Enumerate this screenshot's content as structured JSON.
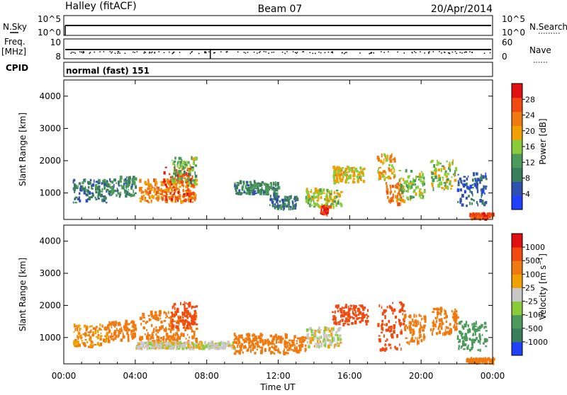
{
  "header": {
    "radar": "Halley (fitACF)",
    "beam": "Beam 07",
    "date": "20/Apr/2014"
  },
  "param_panel": {
    "left_top_label": "N.Sky",
    "left_mid_label": "Freq.",
    "left_mid_unit": "[MHz]",
    "left_bottom_label": "CPID",
    "right_top_label": "N.Search",
    "right_mid_label": "Nave",
    "nsky_ticks": [
      "10^5",
      "10^0"
    ],
    "nsearch_ticks": [
      "10^5",
      "10^0"
    ],
    "freq_ticks": [
      "10",
      "8"
    ],
    "nave_ticks": [
      "60",
      "0"
    ],
    "cpid_text": "normal (fast) 151"
  },
  "colors": {
    "power_scale": [
      "#2040ff",
      "#3050b0",
      "#3a7d5a",
      "#4c9a5a",
      "#8acb3a",
      "#f0a000",
      "#f07a10",
      "#f04a10",
      "#e01010"
    ],
    "velocity_scale": [
      "#e01010",
      "#f04a10",
      "#f07a10",
      "#f0a000",
      "#c8c8c8",
      "#8acb3a",
      "#4c9a5a",
      "#3a7d5a",
      "#2040ff"
    ]
  },
  "chart_data": [
    {
      "type": "heatmap",
      "name": "Power",
      "ylabel": "Slant Range [km]",
      "xlabel": "",
      "x_range_hours": [
        0,
        24
      ],
      "ylim": [
        180,
        4500
      ],
      "yticks": [
        "4000",
        "3000",
        "2000",
        "1000"
      ],
      "colorbar_label": "Power [dB]",
      "colorbar_ticks": [
        "28",
        "24",
        "20",
        "16",
        "12",
        "8",
        "4"
      ],
      "colorbar_range": [
        0,
        32
      ],
      "regions": [
        {
          "t": [
            0.5,
            2.5
          ],
          "r": [
            700,
            1400
          ],
          "value": 8
        },
        {
          "t": [
            2.5,
            4.0
          ],
          "r": [
            900,
            1500
          ],
          "value": 10
        },
        {
          "t": [
            4.2,
            7.4
          ],
          "r": [
            700,
            1400
          ],
          "value": 22
        },
        {
          "t": [
            5.5,
            7.2
          ],
          "r": [
            750,
            1800
          ],
          "value": 27
        },
        {
          "t": [
            6.0,
            7.4
          ],
          "r": [
            1300,
            2100
          ],
          "value": 14
        },
        {
          "t": [
            9.5,
            12.0
          ],
          "r": [
            950,
            1350
          ],
          "value": 10
        },
        {
          "t": [
            11.5,
            13.0
          ],
          "r": [
            500,
            900
          ],
          "value": 8
        },
        {
          "t": [
            13.5,
            15.5
          ],
          "r": [
            550,
            1100
          ],
          "value": 16
        },
        {
          "t": [
            14.3,
            14.8
          ],
          "r": [
            300,
            600
          ],
          "value": 29
        },
        {
          "t": [
            15.0,
            16.8
          ],
          "r": [
            1300,
            1800
          ],
          "value": 18
        },
        {
          "t": [
            17.5,
            18.5
          ],
          "r": [
            1400,
            2200
          ],
          "value": 20
        },
        {
          "t": [
            18.0,
            19.0
          ],
          "r": [
            600,
            1300
          ],
          "value": 24
        },
        {
          "t": [
            18.7,
            20.2
          ],
          "r": [
            800,
            1700
          ],
          "value": 15
        },
        {
          "t": [
            20.5,
            21.9
          ],
          "r": [
            1100,
            2000
          ],
          "value": 16
        },
        {
          "t": [
            22.0,
            23.6
          ],
          "r": [
            600,
            1600
          ],
          "value": 7
        },
        {
          "t": [
            22.7,
            24.0
          ],
          "r": [
            200,
            350
          ],
          "value": 27
        }
      ]
    },
    {
      "type": "heatmap",
      "name": "Velocity",
      "ylabel": "Slant Range [km]",
      "xlabel": "Time UT",
      "x_range_hours": [
        0,
        24
      ],
      "xticks": [
        "00:00",
        "04:00",
        "08:00",
        "12:00",
        "16:00",
        "20:00",
        "00:00"
      ],
      "ylim": [
        180,
        4500
      ],
      "yticks": [
        "4000",
        "3000",
        "2000",
        "1000"
      ],
      "colorbar_label": "Velocity [m s-1]",
      "colorbar_ticks": [
        "1000",
        "500",
        "100",
        "25",
        "-25",
        "-100",
        "-500",
        "-1000"
      ],
      "regions": [
        {
          "t": [
            0.5,
            2.5
          ],
          "r": [
            700,
            1400
          ],
          "value": -100
        },
        {
          "t": [
            2.5,
            4.0
          ],
          "r": [
            900,
            1500
          ],
          "value": -300
        },
        {
          "t": [
            4.2,
            7.4
          ],
          "r": [
            800,
            1800
          ],
          "value": -200
        },
        {
          "t": [
            6.0,
            7.4
          ],
          "r": [
            1300,
            2100
          ],
          "value": -600
        },
        {
          "t": [
            4.0,
            9.5
          ],
          "r": [
            650,
            850
          ],
          "value": 0
        },
        {
          "t": [
            9.5,
            13.5
          ],
          "r": [
            500,
            1100
          ],
          "value": -150
        },
        {
          "t": [
            13.5,
            15.5
          ],
          "r": [
            700,
            1300
          ],
          "value": 0
        },
        {
          "t": [
            15.0,
            17.0
          ],
          "r": [
            1400,
            2000
          ],
          "value": -600
        },
        {
          "t": [
            17.5,
            19.0
          ],
          "r": [
            600,
            2100
          ],
          "value": -600
        },
        {
          "t": [
            19.0,
            20.2
          ],
          "r": [
            800,
            1700
          ],
          "value": -300
        },
        {
          "t": [
            20.5,
            22.0
          ],
          "r": [
            1100,
            1900
          ],
          "value": -150
        },
        {
          "t": [
            22.0,
            23.6
          ],
          "r": [
            600,
            1500
          ],
          "value": 200
        },
        {
          "t": [
            22.5,
            24.0
          ],
          "r": [
            200,
            350
          ],
          "value": -150
        }
      ]
    }
  ]
}
